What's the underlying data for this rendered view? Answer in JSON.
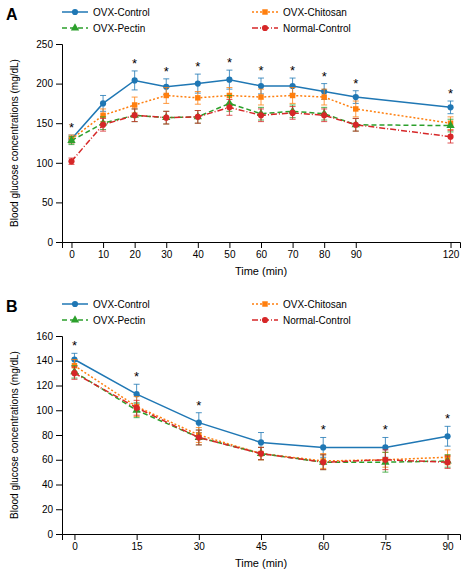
{
  "chart_data": [
    {
      "type": "line",
      "title": "A",
      "x": [
        0,
        10,
        20,
        30,
        40,
        50,
        60,
        70,
        80,
        90,
        120
      ],
      "xlim": [
        -3,
        123
      ],
      "xticks": [
        0,
        10,
        20,
        30,
        40,
        50,
        60,
        70,
        80,
        90,
        120
      ],
      "ylim": [
        0,
        250
      ],
      "yticks": [
        0,
        50,
        100,
        150,
        200,
        250
      ],
      "xlabel": "Time (min)",
      "ylabel": "Blood glucose concentrations (mg/dL)",
      "grid": false,
      "legend": "top-left",
      "series": [
        {
          "name": "OVX-Control",
          "values": [
            130,
            175,
            204,
            196,
            200,
            205,
            197,
            197,
            190,
            183,
            170
          ],
          "error": [
            5,
            10,
            12,
            10,
            12,
            12,
            10,
            10,
            10,
            8,
            8
          ],
          "marker": "circle",
          "line_style": "solid"
        },
        {
          "name": "OVX-Chitosan",
          "values": [
            130,
            160,
            173,
            185,
            182,
            185,
            183,
            185,
            183,
            168,
            150
          ],
          "error": [
            5,
            8,
            10,
            10,
            8,
            10,
            10,
            10,
            10,
            10,
            8
          ],
          "marker": "square",
          "line_style": "dotted"
        },
        {
          "name": "OVX-Pectin",
          "values": [
            128,
            150,
            160,
            157,
            158,
            175,
            162,
            165,
            162,
            148,
            147
          ],
          "error": [
            5,
            8,
            8,
            8,
            8,
            10,
            8,
            8,
            8,
            8,
            8
          ],
          "marker": "triangle",
          "line_style": "dashed"
        },
        {
          "name": "Normal-Control",
          "values": [
            102,
            148,
            160,
            157,
            158,
            170,
            160,
            163,
            160,
            148,
            133
          ],
          "error": [
            4,
            8,
            8,
            8,
            8,
            10,
            8,
            8,
            8,
            8,
            8
          ],
          "marker": "circle",
          "line_style": "dashdot"
        }
      ],
      "annotations": [
        {
          "text": "*",
          "x": 0,
          "series": "OVX-Control"
        },
        {
          "text": "*",
          "x": 20,
          "series": "OVX-Control"
        },
        {
          "text": "*",
          "x": 30,
          "series": "OVX-Control"
        },
        {
          "text": "*",
          "x": 40,
          "series": "OVX-Control"
        },
        {
          "text": "*",
          "x": 50,
          "series": "OVX-Control"
        },
        {
          "text": "*",
          "x": 60,
          "series": "OVX-Control"
        },
        {
          "text": "*",
          "x": 70,
          "series": "OVX-Control"
        },
        {
          "text": "*",
          "x": 80,
          "series": "OVX-Control"
        },
        {
          "text": "*",
          "x": 90,
          "series": "OVX-Control"
        },
        {
          "text": "*",
          "x": 120,
          "series": "OVX-Control"
        }
      ]
    },
    {
      "type": "line",
      "title": "B",
      "x": [
        0,
        15,
        30,
        45,
        60,
        75,
        90
      ],
      "xlim": [
        -3,
        93
      ],
      "xticks": [
        0,
        15,
        30,
        45,
        60,
        75,
        90
      ],
      "ylim": [
        0,
        160
      ],
      "yticks": [
        0,
        20,
        40,
        60,
        80,
        100,
        120,
        140,
        160
      ],
      "xlabel": "Time (min)",
      "ylabel": "Blood glucose concentrations (mg/dL)",
      "grid": false,
      "legend": "top-left",
      "series": [
        {
          "name": "OVX-Control",
          "values": [
            141,
            113,
            90,
            74,
            70,
            70,
            79
          ],
          "error": [
            5,
            8,
            8,
            8,
            8,
            8,
            8
          ],
          "marker": "circle",
          "line_style": "solid"
        },
        {
          "name": "OVX-Chitosan",
          "values": [
            136,
            103,
            80,
            65,
            59,
            60,
            62
          ],
          "error": [
            5,
            8,
            6,
            5,
            6,
            6,
            6
          ],
          "marker": "square",
          "line_style": "dotted"
        },
        {
          "name": "OVX-Pectin",
          "values": [
            131,
            100,
            78,
            65,
            58,
            58,
            59
          ],
          "error": [
            5,
            6,
            6,
            5,
            6,
            8,
            5
          ],
          "marker": "triangle",
          "line_style": "dashed"
        },
        {
          "name": "Normal-Control",
          "values": [
            130,
            102,
            78,
            65,
            58,
            60,
            58
          ],
          "error": [
            5,
            6,
            6,
            5,
            6,
            8,
            5
          ],
          "marker": "circle",
          "line_style": "dashdot"
        }
      ],
      "annotations": [
        {
          "text": "*",
          "x": 0,
          "series": "OVX-Control"
        },
        {
          "text": "*",
          "x": 15,
          "series": "OVX-Control"
        },
        {
          "text": "*",
          "x": 30,
          "series": "OVX-Control"
        },
        {
          "text": "*",
          "x": 60,
          "series": "OVX-Control"
        },
        {
          "text": "*",
          "x": 75,
          "series": "OVX-Control"
        },
        {
          "text": "*",
          "x": 90,
          "series": "OVX-Control"
        }
      ]
    }
  ]
}
